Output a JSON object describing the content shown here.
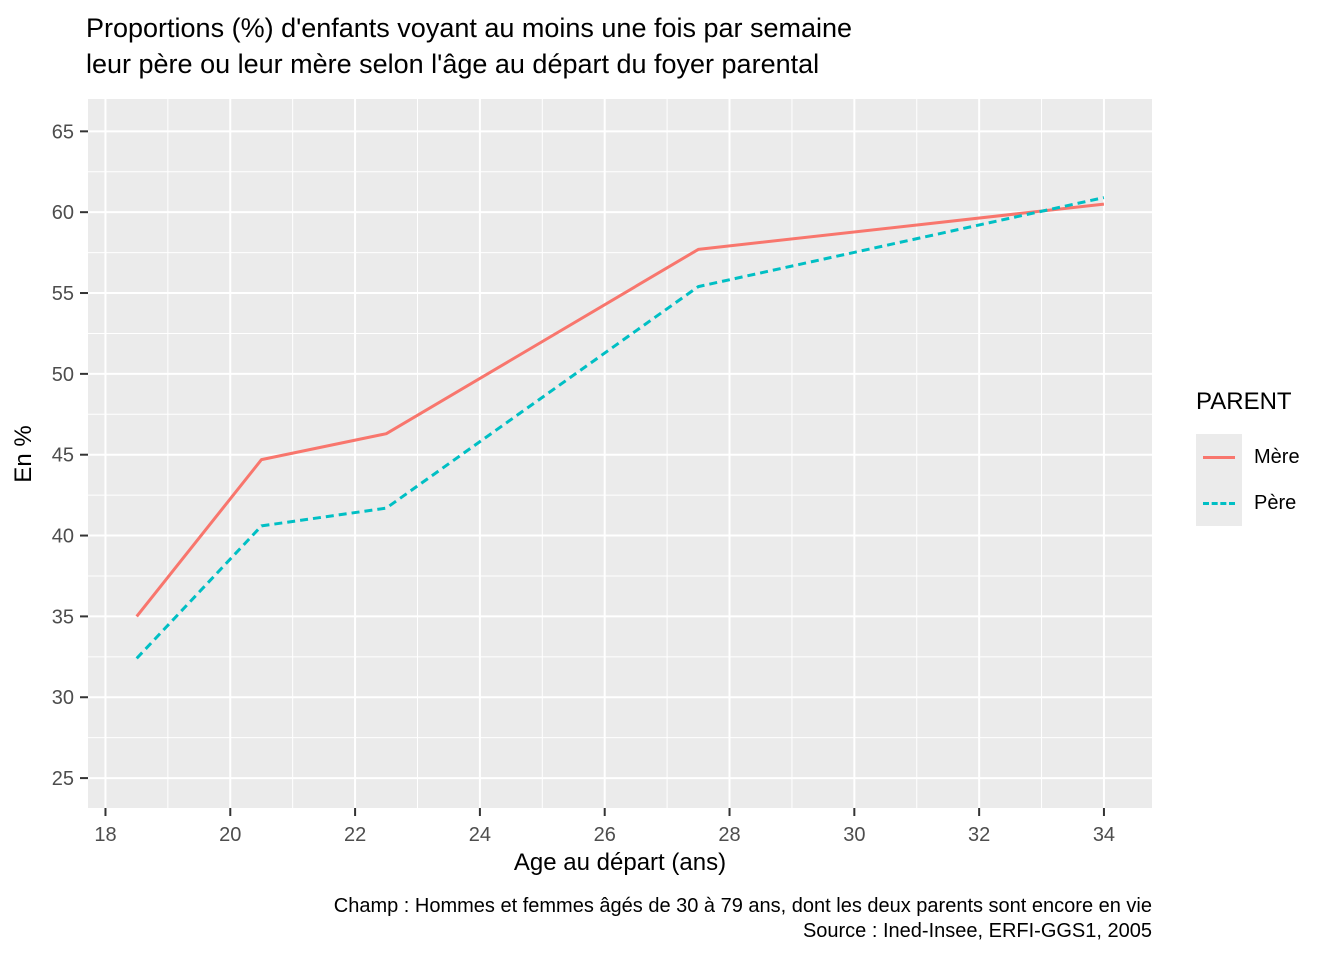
{
  "chart_data": {
    "type": "line",
    "title": "Proportions (%) d'enfants voyant au moins une fois par semaine leur père ou leur mère selon l'âge au départ du foyer parental",
    "title_lines": [
      "Proportions (%) d'enfants voyant au moins une fois par semaine",
      "leur père ou leur mère selon l'âge au départ du foyer parental"
    ],
    "xlabel": "Age au départ (ans)",
    "ylabel": "En %",
    "caption_lines": [
      "Champ : Hommes et femmes âgés de 30 à 79 ans, dont les deux parents sont encore en vie",
      "Source : Ined-Insee, ERFI-GGS1, 2005"
    ],
    "legend": {
      "title": "PARENT",
      "position": "right"
    },
    "series": [
      {
        "name": "Mère",
        "color": "#F8766D",
        "linetype": "solid",
        "x": [
          18.5,
          20.5,
          22.5,
          27.5,
          34
        ],
        "y": [
          35.0,
          44.7,
          46.3,
          57.7,
          60.5
        ]
      },
      {
        "name": "Père",
        "color": "#00BFC4",
        "linetype": "dashed",
        "x": [
          18.5,
          20.5,
          22.5,
          27.5,
          34
        ],
        "y": [
          32.4,
          40.6,
          41.7,
          55.4,
          60.9
        ]
      }
    ],
    "x_ticks": [
      18,
      20,
      22,
      24,
      26,
      28,
      30,
      32,
      34
    ],
    "y_ticks": [
      25,
      30,
      35,
      40,
      45,
      50,
      55,
      60,
      65
    ],
    "xlim": [
      17.72,
      34.77
    ],
    "ylim": [
      23.15,
      67.0
    ],
    "grid": {
      "major": true,
      "minor": true,
      "color": "#FFFFFF"
    },
    "panel_background": "#EBEBEB",
    "axis_text_color": "#4D4D4D",
    "tick_color": "#333333"
  }
}
